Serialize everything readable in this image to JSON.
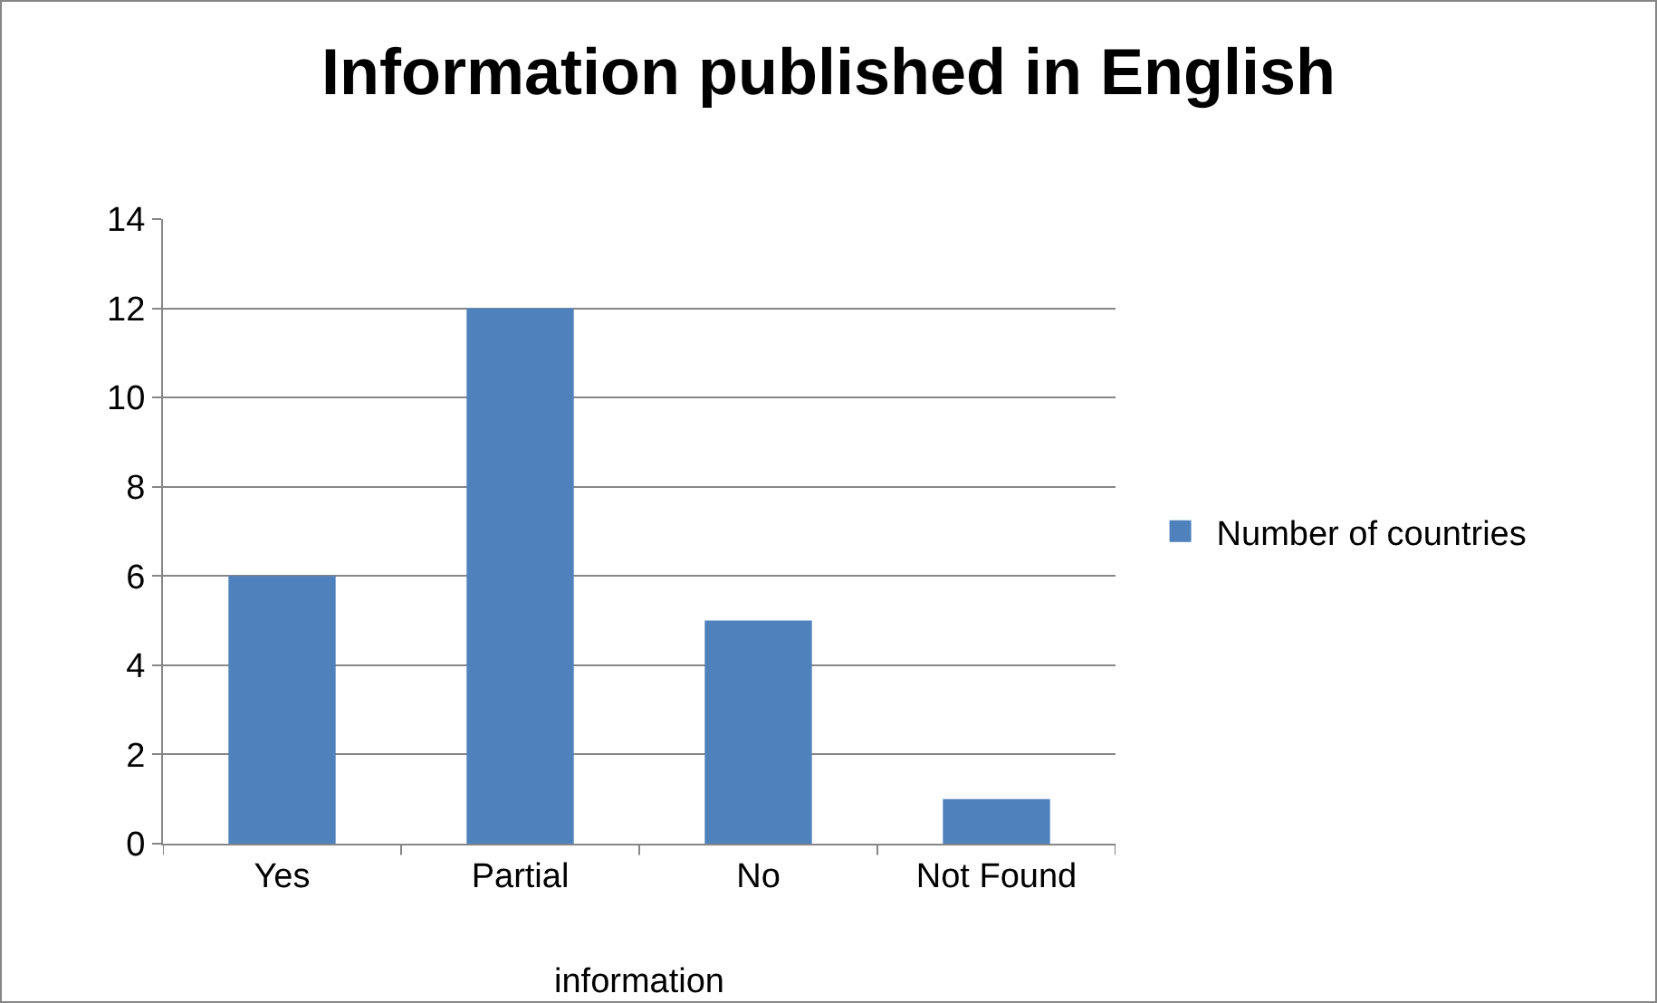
{
  "chart_data": {
    "type": "bar",
    "title": "Information published in English",
    "xlabel": "information",
    "categories": [
      "Yes",
      "Partial",
      "No",
      "Not Found"
    ],
    "series": [
      {
        "name": "Number of countries",
        "color": "#4f81bd",
        "values": [
          6,
          12,
          5,
          1
        ]
      }
    ],
    "ylim": [
      0,
      14
    ],
    "yticks": [
      0,
      2,
      4,
      6,
      8,
      10,
      12,
      14
    ],
    "grid": "y",
    "legend": "right"
  }
}
